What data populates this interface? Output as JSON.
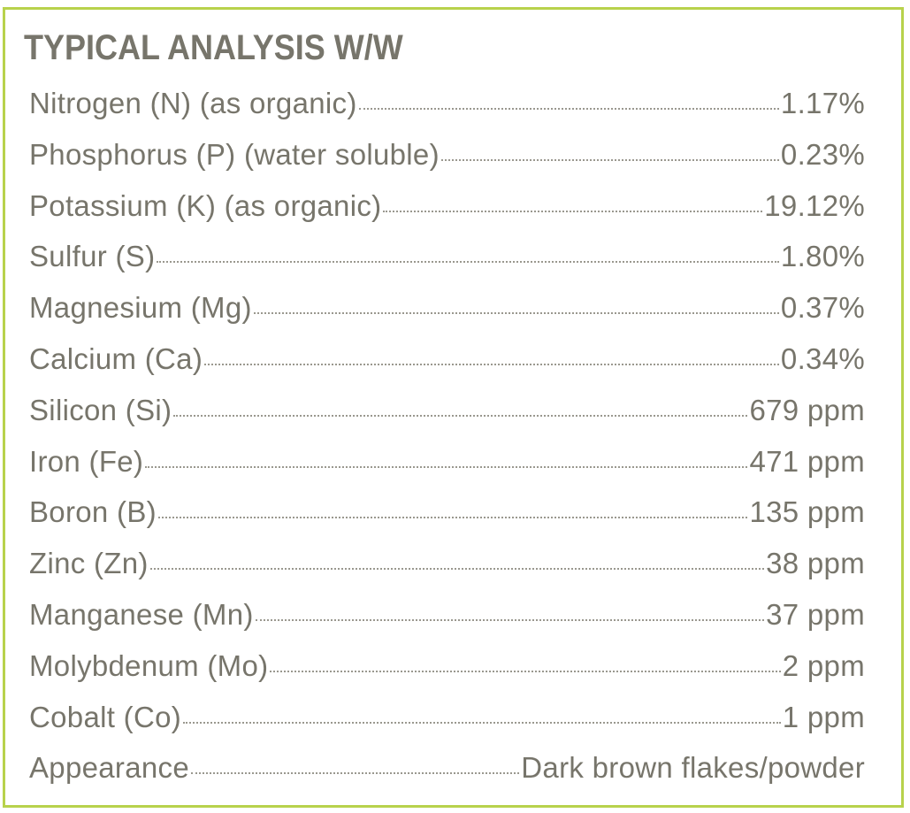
{
  "title": "TYPICAL ANALYSIS W/W",
  "accent_border_color": "#b8d24c",
  "rows": [
    {
      "label": "Nitrogen (N) (as organic)",
      "value": "1.17%"
    },
    {
      "label": "Phosphorus (P) (water soluble)",
      "value": "0.23%"
    },
    {
      "label": "Potassium (K) (as organic)",
      "value": "19.12%"
    },
    {
      "label": "Sulfur (S)",
      "value": "1.80%"
    },
    {
      "label": "Magnesium (Mg)",
      "value": "0.37%"
    },
    {
      "label": "Calcium (Ca)",
      "value": "0.34%"
    },
    {
      "label": "Silicon (Si)",
      "value": "679 ppm"
    },
    {
      "label": "Iron (Fe)",
      "value": "471 ppm"
    },
    {
      "label": "Boron (B)",
      "value": "135 ppm"
    },
    {
      "label": "Zinc (Zn)",
      "value": "38 ppm"
    },
    {
      "label": "Manganese (Mn)",
      "value": "37 ppm"
    },
    {
      "label": "Molybdenum (Mo)",
      "value": "2 ppm"
    },
    {
      "label": "Cobalt (Co)",
      "value": "1 ppm"
    },
    {
      "label": "Appearance",
      "value": "Dark brown flakes/powder"
    }
  ]
}
